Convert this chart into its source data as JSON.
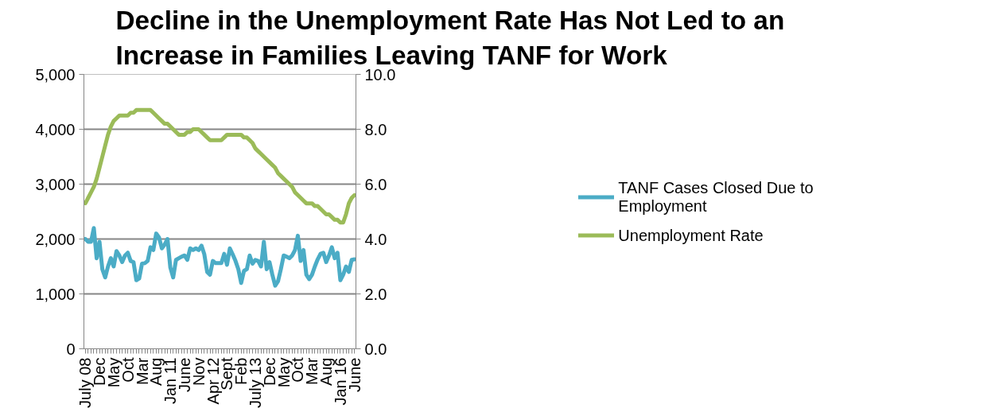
{
  "chart_data": {
    "type": "line",
    "title": "Decline in the Unemployment Rate Has Not Led to an\nIncrease in Families Leaving TANF for Work",
    "categories": [
      "July 08",
      null,
      null,
      null,
      null,
      "Dec",
      null,
      null,
      null,
      null,
      "May",
      null,
      null,
      null,
      null,
      "Oct",
      null,
      null,
      null,
      null,
      "Mar",
      null,
      null,
      null,
      null,
      "Aug",
      null,
      null,
      null,
      null,
      "Jan 11",
      null,
      null,
      null,
      null,
      "June",
      null,
      null,
      null,
      null,
      "Nov",
      null,
      null,
      null,
      null,
      "Apr 12",
      null,
      null,
      null,
      null,
      "Sept",
      null,
      null,
      null,
      null,
      "Feb",
      null,
      null,
      null,
      null,
      "July 13",
      null,
      null,
      null,
      null,
      "Dec",
      null,
      null,
      null,
      null,
      "May",
      null,
      null,
      null,
      null,
      "Oct",
      null,
      null,
      null,
      null,
      "Mar",
      null,
      null,
      null,
      null,
      "Aug",
      null,
      null,
      null,
      null,
      "Jan 16",
      null,
      null,
      null,
      null,
      "June"
    ],
    "series": [
      {
        "name": "TANF Cases Closed Due to Employment",
        "color": "#4bacc6",
        "values": [
          2000,
          1950,
          1950,
          2200,
          1650,
          1950,
          1450,
          1300,
          1500,
          1650,
          1500,
          1780,
          1700,
          1580,
          1700,
          1750,
          1600,
          1580,
          1250,
          1280,
          1550,
          1560,
          1600,
          1850,
          1800,
          2100,
          2030,
          1830,
          1900,
          2000,
          1480,
          1300,
          1620,
          1650,
          1680,
          1700,
          1620,
          1830,
          1800,
          1830,
          1800,
          1880,
          1720,
          1400,
          1350,
          1600,
          1560,
          1560,
          1560,
          1730,
          1530,
          1830,
          1720,
          1600,
          1450,
          1200,
          1420,
          1450,
          1700,
          1550,
          1620,
          1600,
          1500,
          1950,
          1450,
          1580,
          1350,
          1150,
          1230,
          1450,
          1700,
          1680,
          1650,
          1700,
          1800,
          2060,
          1600,
          1800,
          1350,
          1270,
          1350,
          1500,
          1630,
          1730,
          1750,
          1580,
          1700,
          1850,
          1650,
          1750,
          1250,
          1350,
          1500,
          1400,
          1620,
          1630
        ]
      },
      {
        "name": "Unemployment Rate",
        "color": "#9bbb59",
        "axis": "y2",
        "values": [
          5.3,
          5.5,
          5.7,
          5.9,
          6.2,
          6.6,
          7.0,
          7.4,
          7.8,
          8.1,
          8.3,
          8.4,
          8.5,
          8.5,
          8.5,
          8.5,
          8.6,
          8.6,
          8.7,
          8.7,
          8.7,
          8.7,
          8.7,
          8.7,
          8.6,
          8.5,
          8.4,
          8.3,
          8.2,
          8.2,
          8.1,
          8.0,
          7.9,
          7.8,
          7.8,
          7.8,
          7.9,
          7.9,
          8.0,
          8.0,
          8.0,
          7.9,
          7.8,
          7.7,
          7.6,
          7.6,
          7.6,
          7.6,
          7.6,
          7.7,
          7.8,
          7.8,
          7.8,
          7.8,
          7.8,
          7.8,
          7.7,
          7.7,
          7.6,
          7.5,
          7.3,
          7.2,
          7.1,
          7.0,
          6.9,
          6.8,
          6.7,
          6.6,
          6.4,
          6.3,
          6.2,
          6.1,
          6.0,
          5.9,
          5.7,
          5.6,
          5.5,
          5.4,
          5.3,
          5.3,
          5.3,
          5.2,
          5.2,
          5.1,
          5.0,
          4.9,
          4.9,
          4.8,
          4.7,
          4.7,
          4.6,
          4.6,
          4.9,
          5.3,
          5.5,
          5.6
        ]
      }
    ],
    "ylim": [
      0,
      5000
    ],
    "yticks": [
      0,
      {
        "value": 1000,
        "label": "1,000"
      },
      {
        "value": 2000,
        "label": "2,000"
      },
      {
        "value": 3000,
        "label": "3,000"
      },
      {
        "value": 4000,
        "label": "4,000"
      },
      {
        "value": 5000,
        "label": "5,000"
      }
    ],
    "y2lim": [
      0,
      10
    ],
    "y2ticks": [
      {
        "value": 0,
        "label": "0.0"
      },
      {
        "value": 2,
        "label": "2.0"
      },
      {
        "value": 4,
        "label": "4.0"
      },
      {
        "value": 6,
        "label": "6.0"
      },
      {
        "value": 8,
        "label": "8.0"
      },
      {
        "value": 10,
        "label": "10.0"
      }
    ],
    "grid": "y",
    "legend": "right",
    "marker": "none",
    "line_style": "solid"
  }
}
